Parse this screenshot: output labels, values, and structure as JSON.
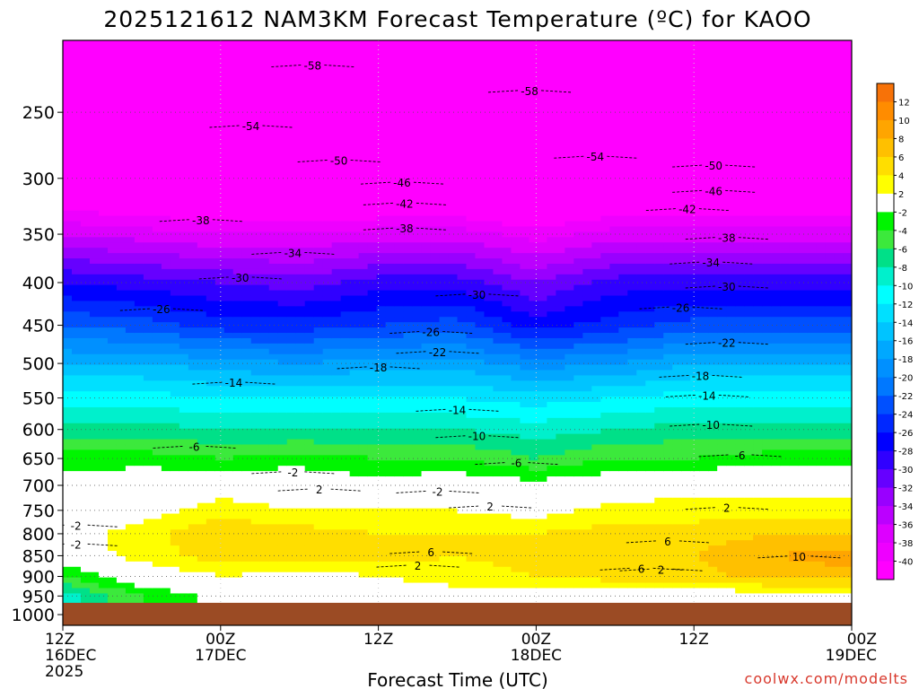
{
  "title": "2025121612 NAM3KM Forecast Temperature (ºC) for KAOO",
  "credit": "coolwx.com/modelts",
  "chart_data": {
    "type": "heatmap",
    "title": "2025121612 NAM3KM Forecast Temperature (ºC) for KAOO",
    "xlabel": "Forecast Time (UTC)",
    "ylabel": "",
    "x_ticks": [
      {
        "hour": 0,
        "lines": [
          "12Z",
          "16DEC",
          "2025"
        ]
      },
      {
        "hour": 12,
        "lines": [
          "00Z",
          "17DEC"
        ]
      },
      {
        "hour": 24,
        "lines": [
          "12Z"
        ]
      },
      {
        "hour": 36,
        "lines": [
          "00Z",
          "18DEC"
        ]
      },
      {
        "hour": 48,
        "lines": [
          "12Z"
        ]
      },
      {
        "hour": 60,
        "lines": [
          "00Z",
          "19DEC"
        ]
      }
    ],
    "x_range": [
      0,
      60
    ],
    "y_ticks": [
      "250",
      "300",
      "350",
      "400",
      "450",
      "500",
      "550",
      "600",
      "650",
      "700",
      "750",
      "800",
      "850",
      "900",
      "950",
      "1000"
    ],
    "y_range": [
      205,
      1030
    ],
    "y_scale": "log-pressure",
    "grid": true,
    "ground_below_hpa": 968,
    "time_hours": [
      0,
      6,
      12,
      18,
      24,
      30,
      36,
      42,
      48,
      54,
      60
    ],
    "profiles": [
      {
        "p": [
          205,
          250,
          300,
          350,
          400,
          450,
          500,
          550,
          600,
          650,
          700,
          750,
          800,
          850,
          900,
          950
        ],
        "t": [
          -60,
          -55,
          -45,
          -36,
          -28,
          -22,
          -16,
          -11,
          -7,
          -3,
          -1,
          0,
          1,
          0,
          -4,
          -9
        ]
      },
      {
        "p": [
          205,
          250,
          300,
          350,
          400,
          450,
          500,
          550,
          600,
          650,
          700,
          750,
          800,
          850,
          900,
          950
        ],
        "t": [
          -60,
          -55,
          -46,
          -37,
          -29,
          -23,
          -16,
          -11,
          -7,
          -3,
          0,
          1,
          3,
          3,
          0,
          -4
        ]
      },
      {
        "p": [
          205,
          250,
          300,
          350,
          400,
          450,
          500,
          550,
          600,
          650,
          700,
          750,
          800,
          850,
          900,
          950
        ],
        "t": [
          -60,
          -55,
          -47,
          -38,
          -30,
          -25,
          -17,
          -12,
          -8,
          -4,
          1,
          3,
          6,
          5,
          2,
          -1
        ]
      },
      {
        "p": [
          205,
          250,
          300,
          350,
          400,
          450,
          500,
          550,
          600,
          650,
          700,
          750,
          800,
          850,
          900,
          950
        ],
        "t": [
          -60,
          -55,
          -47,
          -38,
          -31,
          -25,
          -18,
          -12,
          -8,
          -3,
          0,
          2,
          5,
          5,
          1,
          0
        ]
      },
      {
        "p": [
          205,
          250,
          300,
          350,
          400,
          450,
          500,
          550,
          600,
          650,
          700,
          750,
          800,
          850,
          900,
          950
        ],
        "t": [
          -60,
          -56,
          -47,
          -37,
          -29,
          -24,
          -17,
          -12,
          -8,
          -4,
          -1,
          2,
          4,
          5,
          2,
          0
        ]
      },
      {
        "p": [
          205,
          250,
          300,
          350,
          400,
          450,
          500,
          550,
          600,
          650,
          700,
          750,
          800,
          850,
          900,
          950
        ],
        "t": [
          -59,
          -56,
          -46,
          -37,
          -29,
          -23,
          -17,
          -12,
          -8,
          -4,
          0,
          2,
          4,
          4,
          3,
          1
        ]
      },
      {
        "p": [
          205,
          250,
          300,
          350,
          400,
          450,
          500,
          550,
          600,
          650,
          700,
          750,
          800,
          850,
          900,
          950
        ],
        "t": [
          -60,
          -57,
          -48,
          -39,
          -32,
          -27,
          -19,
          -13,
          -9,
          -6,
          -1,
          1,
          4,
          5,
          4,
          1
        ]
      },
      {
        "p": [
          205,
          250,
          300,
          350,
          400,
          450,
          500,
          550,
          600,
          650,
          700,
          750,
          800,
          850,
          900,
          950
        ],
        "t": [
          -60,
          -56,
          -46,
          -37,
          -29,
          -25,
          -18,
          -12,
          -8,
          -4,
          0,
          3,
          5,
          6,
          5,
          0
        ]
      },
      {
        "p": [
          205,
          250,
          300,
          350,
          400,
          450,
          500,
          550,
          600,
          650,
          700,
          750,
          800,
          850,
          900,
          950
        ],
        "t": [
          -61,
          -55,
          -46,
          -37,
          -29,
          -23,
          -16,
          -11,
          -7,
          -4,
          1,
          3,
          5,
          6,
          5,
          0
        ]
      },
      {
        "p": [
          205,
          250,
          300,
          350,
          400,
          450,
          500,
          550,
          600,
          650,
          700,
          750,
          800,
          850,
          900,
          950
        ],
        "t": [
          -60,
          -55,
          -46,
          -37,
          -29,
          -23,
          -16,
          -11,
          -7,
          -3,
          1,
          3,
          6,
          8,
          7,
          1
        ]
      },
      {
        "p": [
          205,
          250,
          300,
          350,
          400,
          450,
          500,
          550,
          600,
          650,
          700,
          750,
          800,
          850,
          900,
          950
        ],
        "t": [
          -60,
          -55,
          -46,
          -37,
          -29,
          -23,
          -16,
          -11,
          -7,
          -3,
          1,
          3,
          6,
          9,
          7,
          1
        ]
      }
    ],
    "contours": [
      {
        "value": -58,
        "labels": [
          [
            19.0,
            220
          ],
          [
            35.5,
            236
          ]
        ]
      },
      {
        "value": -54,
        "labels": [
          [
            14.3,
            260
          ],
          [
            40.5,
            283
          ]
        ]
      },
      {
        "value": -50,
        "labels": [
          [
            21.0,
            286
          ],
          [
            49.5,
            290
          ]
        ]
      },
      {
        "value": -46,
        "labels": [
          [
            25.8,
            304
          ],
          [
            49.5,
            311
          ]
        ]
      },
      {
        "value": -42,
        "labels": [
          [
            26.0,
            322
          ],
          [
            47.5,
            327
          ]
        ]
      },
      {
        "value": -38,
        "labels": [
          [
            10.5,
            337
          ],
          [
            26.0,
            345
          ],
          [
            50.5,
            354
          ]
        ]
      },
      {
        "value": -34,
        "labels": [
          [
            17.5,
            369
          ],
          [
            49.3,
            379
          ]
        ]
      },
      {
        "value": -30,
        "labels": [
          [
            13.5,
            395
          ],
          [
            31.5,
            414
          ],
          [
            50.5,
            405
          ]
        ]
      },
      {
        "value": -26,
        "labels": [
          [
            7.5,
            431
          ],
          [
            28.0,
            459
          ],
          [
            47.0,
            429
          ]
        ]
      },
      {
        "value": -22,
        "labels": [
          [
            28.5,
            485
          ],
          [
            50.5,
            473
          ]
        ]
      },
      {
        "value": -18,
        "labels": [
          [
            24.0,
            506
          ],
          [
            48.5,
            518
          ]
        ]
      },
      {
        "value": -14,
        "labels": [
          [
            13.0,
            528
          ],
          [
            30.0,
            569
          ],
          [
            49.0,
            547
          ]
        ]
      },
      {
        "value": -10,
        "labels": [
          [
            31.5,
            612
          ],
          [
            49.3,
            593
          ]
        ]
      },
      {
        "value": -6,
        "labels": [
          [
            10.0,
            630
          ],
          [
            34.5,
            659
          ],
          [
            51.5,
            645
          ]
        ]
      },
      {
        "value": -2,
        "labels": [
          [
            17.5,
            676
          ],
          [
            28.5,
            713
          ],
          [
            1.0,
            783
          ],
          [
            1.0,
            825
          ]
        ]
      },
      {
        "value": 2,
        "labels": [
          [
            19.5,
            709
          ],
          [
            32.5,
            743
          ],
          [
            50.5,
            746
          ],
          [
            45.5,
            884
          ],
          [
            27.0,
            875
          ]
        ]
      },
      {
        "value": 6,
        "labels": [
          [
            28.0,
            843
          ],
          [
            46.0,
            818
          ],
          [
            44.0,
            882
          ]
        ]
      },
      {
        "value": 10,
        "labels": [
          [
            56.0,
            853
          ]
        ]
      }
    ],
    "colorbar": {
      "labels": [
        "12",
        "10",
        "8",
        "6",
        "4",
        "2",
        "-2",
        "-4",
        "-6",
        "-8",
        "-10",
        "-12",
        "-14",
        "-16",
        "-18",
        "-20",
        "-22",
        "-24",
        "-26",
        "-28",
        "-30",
        "-32",
        "-34",
        "-36",
        "-38",
        "-40"
      ],
      "colors": [
        "#f77208",
        "#ff8c00",
        "#ffa500",
        "#ffc000",
        "#ffde00",
        "#ffff00",
        "#ffffff",
        "#00f500",
        "#3ce93c",
        "#00e088",
        "#00f0cc",
        "#00ffff",
        "#00e0ff",
        "#00c4ff",
        "#00a8ff",
        "#0090ff",
        "#0078ff",
        "#0050ff",
        "#0028ff",
        "#0000ff",
        "#3000ff",
        "#6600ff",
        "#9900ff",
        "#bb00ff",
        "#dd00ff",
        "#ee00ff",
        "#ff00ff"
      ]
    }
  }
}
